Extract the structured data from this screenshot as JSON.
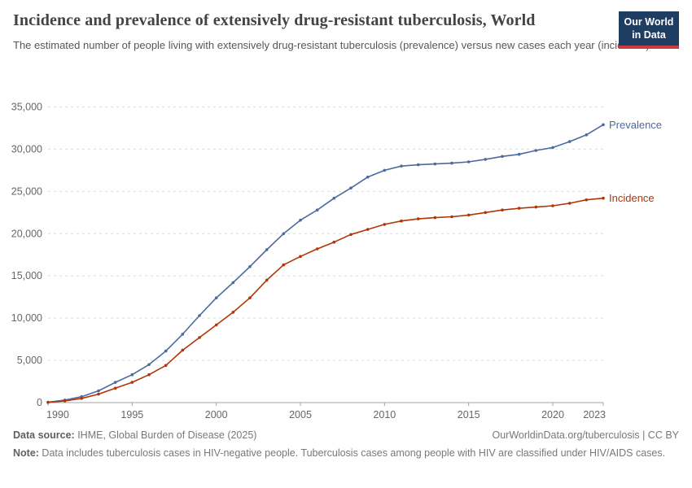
{
  "header": {
    "title": "Incidence and prevalence of extensively drug-resistant tuberculosis, World",
    "subtitle": "The estimated number of people living with extensively drug-resistant tuberculosis (prevalence) versus new cases each year (incidence).",
    "logo": {
      "line1": "Our World",
      "line2": "in Data",
      "bg_color": "#1d3d63",
      "stripe_color": "#cc3b3b"
    }
  },
  "chart_data": {
    "type": "line",
    "title": "Incidence and prevalence of extensively drug-resistant tuberculosis, World",
    "xlabel": "",
    "ylabel": "",
    "x": [
      1990,
      1991,
      1992,
      1993,
      1994,
      1995,
      1996,
      1997,
      1998,
      1999,
      2000,
      2001,
      2002,
      2003,
      2004,
      2005,
      2006,
      2007,
      2008,
      2009,
      2010,
      2011,
      2012,
      2013,
      2014,
      2015,
      2016,
      2017,
      2018,
      2019,
      2020,
      2021,
      2022,
      2023
    ],
    "series": [
      {
        "name": "Prevalence",
        "color": "#4C6A9C",
        "values": [
          50,
          300,
          700,
          1400,
          2400,
          3300,
          4500,
          6100,
          8100,
          10300,
          12400,
          14200,
          16100,
          18100,
          20000,
          21600,
          22800,
          24200,
          25400,
          26700,
          27500,
          28000,
          28150,
          28250,
          28350,
          28500,
          28800,
          29150,
          29400,
          29850,
          30200,
          30900,
          31700,
          32900
        ]
      },
      {
        "name": "Incidence",
        "color": "#B13507",
        "values": [
          30,
          200,
          500,
          1000,
          1700,
          2400,
          3300,
          4400,
          6200,
          7700,
          9200,
          10700,
          12400,
          14500,
          16300,
          17300,
          18200,
          19000,
          19900,
          20500,
          21100,
          21500,
          21750,
          21900,
          22000,
          22200,
          22500,
          22800,
          23000,
          23150,
          23300,
          23600,
          24000,
          24200
        ]
      }
    ],
    "ylim": [
      0,
      35000
    ],
    "yticks": [
      0,
      5000,
      10000,
      15000,
      20000,
      25000,
      30000,
      35000
    ],
    "ytick_labels": [
      "0",
      "5,000",
      "10,000",
      "15,000",
      "20,000",
      "25,000",
      "30,000",
      "35,000"
    ],
    "xticks": [
      1990,
      1995,
      2000,
      2005,
      2010,
      2015,
      2020,
      2023
    ],
    "xtick_labels": [
      "1990",
      "1995",
      "2000",
      "2005",
      "2010",
      "2015",
      "2020",
      "2023"
    ],
    "grid": "horizontal-dashed",
    "legend": "line-end-labels",
    "axis_color": "#a3a3a3",
    "grid_color": "#dcdcdc",
    "tick_text_color": "#666666"
  },
  "footer": {
    "data_source_label": "Data source:",
    "data_source": " IHME, Global Burden of Disease (2025)",
    "link": "OurWorldinData.org/tuberculosis | CC BY",
    "note_label": "Note:",
    "note": " Data includes tuberculosis cases in HIV-negative people. Tuberculosis cases among people with HIV are classified under HIV/AIDS cases."
  }
}
